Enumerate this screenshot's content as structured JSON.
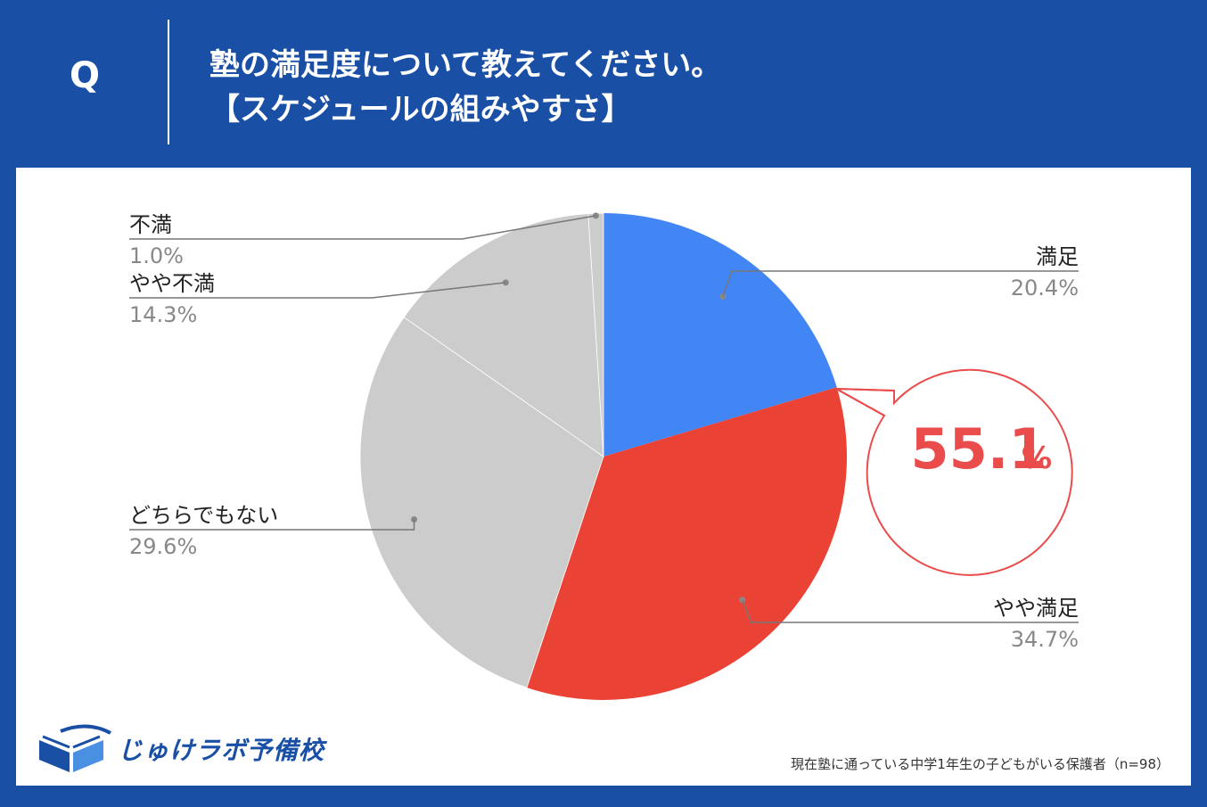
{
  "header": {
    "q_mark": "Q",
    "question_line1": "塾の満足度について教えてください。",
    "question_line2": "【スケジュールの組みやすさ】"
  },
  "colors": {
    "background": "#1a4fa6",
    "satisfied": "#4285f4",
    "somewhat_satisfied": "#ea4335",
    "neutral": "#cccccc",
    "callout": "#ea4c4c"
  },
  "chart_data": {
    "type": "pie",
    "slices": [
      {
        "label": "満足",
        "value": 20.4,
        "value_label": "20.4%",
        "color": "#4285f4"
      },
      {
        "label": "やや満足",
        "value": 34.7,
        "value_label": "34.7%",
        "color": "#ea4335"
      },
      {
        "label": "どちらでもない",
        "value": 29.6,
        "value_label": "29.6%",
        "color": "#cccccc"
      },
      {
        "label": "やや不満",
        "value": 14.3,
        "value_label": "14.3%",
        "color": "#cccccc"
      },
      {
        "label": "不満",
        "value": 1.0,
        "value_label": "1.0%",
        "color": "#cccccc"
      }
    ],
    "callout": {
      "number": "55.1",
      "unit": "%"
    }
  },
  "logo": {
    "icon": "book-icon",
    "text": "じゅけラボ予備校"
  },
  "footnote": "現在塾に通っている中学1年生の子どもがいる保護者（n=98）"
}
